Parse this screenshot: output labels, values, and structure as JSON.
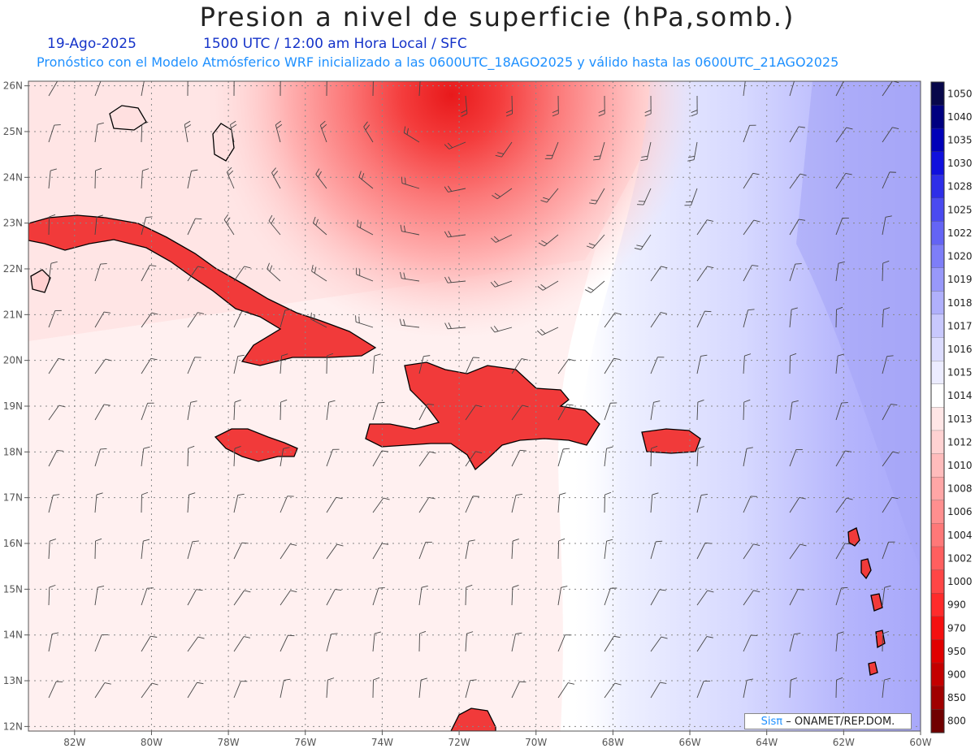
{
  "title": "Presion a nivel de superficie (hPa,somb.)",
  "date": "19-Ago-2025",
  "time_label": "1500 UTC / 12:00 am Hora Local / SFC",
  "forecast_info": "Pronóstico con el Modelo Atmósferico WRF inicializado a las 0600UTC_18AGO2025 y válido hasta las  0600UTC_21AGO2025",
  "credit": {
    "brand": "Sisπ",
    "text": "– ONAMET/REP.DOM."
  },
  "map": {
    "lon_range": [
      -83.2,
      -60
    ],
    "lat_range": [
      11.9,
      26.1
    ],
    "lat_labels": [
      "26N",
      "25N",
      "24N",
      "23N",
      "22N",
      "21N",
      "20N",
      "19N",
      "18N",
      "17N",
      "16N",
      "15N",
      "14N",
      "13N",
      "12N"
    ],
    "lon_labels": [
      "82W",
      "80W",
      "78W",
      "76W",
      "74W",
      "72W",
      "70W",
      "68W",
      "66W",
      "64W",
      "62W",
      "60W"
    ],
    "colors": {
      "low_center": "#e8191b",
      "high_zone": "#9c9cff",
      "coast": "#000000"
    },
    "low_center": {
      "lon": -72.2,
      "lat": 25.8,
      "label": "low-pressure-center"
    }
  },
  "colorbar": {
    "levels": [
      "1050",
      "1040",
      "1035",
      "1030",
      "1028",
      "1025",
      "1022",
      "1020",
      "1019",
      "1018",
      "1017",
      "1016",
      "1015",
      "1014",
      "1013",
      "1012",
      "1010",
      "1008",
      "1006",
      "1004",
      "1002",
      "1000",
      "990",
      "970",
      "950",
      "900",
      "850",
      "800"
    ],
    "colors": [
      "#08084a",
      "#000080",
      "#0000b8",
      "#1010dd",
      "#2e2ee8",
      "#4a4af0",
      "#6464f5",
      "#7e7ef8",
      "#9898fa",
      "#b0b0fc",
      "#c8c8fd",
      "#dcdcfe",
      "#ececff",
      "#ffffff",
      "#ffe6e6",
      "#ffd2d2",
      "#ffbcbc",
      "#ffa6a6",
      "#ff8f8f",
      "#ff7878",
      "#ff5f5f",
      "#ff4646",
      "#ff2b2b",
      "#f51010",
      "#e00000",
      "#c40000",
      "#a00000",
      "#700000"
    ]
  }
}
